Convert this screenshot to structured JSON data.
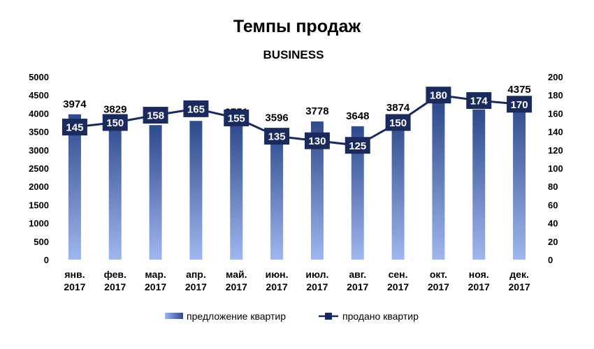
{
  "chart_data": {
    "type": "bar+line",
    "title": "Темпы продаж",
    "subtitle": "BUSINESS",
    "categories": [
      [
        "янв.",
        "2017"
      ],
      [
        "фев.",
        "2017"
      ],
      [
        "мар.",
        "2017"
      ],
      [
        "апр.",
        "2017"
      ],
      [
        "май.",
        "2017"
      ],
      [
        "июн.",
        "2017"
      ],
      [
        "июл.",
        "2017"
      ],
      [
        "авг.",
        "2017"
      ],
      [
        "сен.",
        "2017"
      ],
      [
        "окт.",
        "2017"
      ],
      [
        "ноя.",
        "2017"
      ],
      [
        "дек.",
        "2017"
      ]
    ],
    "series": [
      {
        "name": "предложение квартир",
        "type": "bar",
        "axis": "left",
        "values": [
          3974,
          3829,
          3679,
          3794,
          3751,
          3596,
          3778,
          3648,
          3874,
          4286,
          4106,
          4375
        ]
      },
      {
        "name": "продано квартир",
        "type": "line",
        "axis": "right",
        "values": [
          145,
          150,
          158,
          165,
          155,
          135,
          130,
          125,
          150,
          180,
          174,
          170
        ]
      }
    ],
    "y_left": {
      "min": 0,
      "max": 5000,
      "step": 500
    },
    "y_right": {
      "min": 0,
      "max": 200,
      "step": 20
    },
    "legend_position": "bottom",
    "grid": false,
    "colors": {
      "bar_top": "#2e4a8c",
      "bar_bottom": "#9fb6ee",
      "line": "#1b2a5c",
      "marker": "#1b2a5c"
    }
  }
}
